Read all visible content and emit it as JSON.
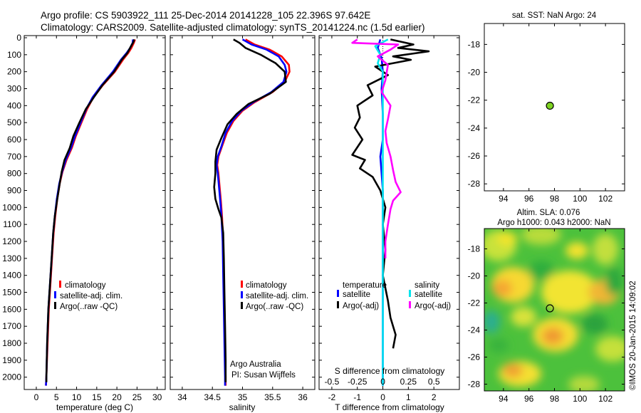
{
  "header": {
    "line1": "Argo profile: CS 5903922_111 25-Dec-2014 20141228_105 22.396S 97.642E",
    "line2": "Climatology: CARS2009. Satellite-adjusted climatology: synTS_20141224.nc (1.5d earlier)"
  },
  "colors": {
    "climatology": "#ff0000",
    "satellite": "#0000ff",
    "argo": "#000000",
    "sal_satellite": "#00e5ee",
    "sal_argo": "#ff00ff",
    "marker": "#7ed321"
  },
  "chart_data": [
    {
      "id": "temperature",
      "type": "line",
      "xlabel": "temperature (deg C)",
      "ylabel": "",
      "xlim": [
        -3,
        32
      ],
      "ylim": [
        2060,
        0
      ],
      "y_inverted": true,
      "yticks": [
        0,
        100,
        200,
        300,
        400,
        500,
        600,
        700,
        800,
        900,
        1000,
        1100,
        1200,
        1300,
        1400,
        1500,
        1600,
        1700,
        1800,
        1900,
        2000
      ],
      "xticks": [
        0,
        5,
        10,
        15,
        20,
        25,
        30
      ],
      "legend": [
        "climatology",
        "satellite-adj. clim.",
        "Argo(..raw -QC)"
      ],
      "series": [
        {
          "name": "climatology",
          "color": "#ff0000",
          "points": [
            [
              24.5,
              10
            ],
            [
              24.2,
              30
            ],
            [
              23.6,
              60
            ],
            [
              22.8,
              90
            ],
            [
              21.5,
              130
            ],
            [
              19.5,
              200
            ],
            [
              16.5,
              280
            ],
            [
              14.2,
              350
            ],
            [
              12.6,
              420
            ],
            [
              11.2,
              500
            ],
            [
              9.8,
              580
            ],
            [
              8.8,
              650
            ],
            [
              7.5,
              720
            ],
            [
              6.5,
              790
            ],
            [
              5.8,
              860
            ],
            [
              5.2,
              950
            ],
            [
              4.7,
              1050
            ],
            [
              4.3,
              1150
            ],
            [
              3.9,
              1300
            ],
            [
              3.5,
              1450
            ],
            [
              3.1,
              1600
            ],
            [
              2.8,
              1800
            ],
            [
              2.5,
              2000
            ],
            [
              2.4,
              2050
            ]
          ]
        },
        {
          "name": "satellite-adj. clim.",
          "color": "#0000ff",
          "points": [
            [
              24.0,
              10
            ],
            [
              23.9,
              30
            ],
            [
              23.3,
              60
            ],
            [
              22.4,
              90
            ],
            [
              21.0,
              130
            ],
            [
              19.0,
              200
            ],
            [
              16.2,
              280
            ],
            [
              14.0,
              350
            ],
            [
              12.4,
              420
            ],
            [
              11.0,
              500
            ],
            [
              9.6,
              580
            ],
            [
              8.6,
              650
            ],
            [
              7.3,
              720
            ],
            [
              6.4,
              790
            ],
            [
              5.7,
              860
            ],
            [
              5.1,
              950
            ],
            [
              4.6,
              1050
            ],
            [
              4.2,
              1150
            ],
            [
              3.8,
              1300
            ],
            [
              3.4,
              1450
            ],
            [
              3.0,
              1600
            ],
            [
              2.7,
              1800
            ],
            [
              2.5,
              2000
            ],
            [
              2.4,
              2050
            ]
          ]
        },
        {
          "name": "Argo(..raw -QC)",
          "color": "#000000",
          "points": [
            [
              24.3,
              10
            ],
            [
              24.1,
              25
            ],
            [
              23.5,
              50
            ],
            [
              22.6,
              90
            ],
            [
              21.2,
              130
            ],
            [
              19.3,
              200
            ],
            [
              16.4,
              280
            ],
            [
              14.3,
              350
            ],
            [
              12.3,
              420
            ],
            [
              10.7,
              500
            ],
            [
              9.2,
              580
            ],
            [
              8.3,
              650
            ],
            [
              7.0,
              720
            ],
            [
              6.3,
              790
            ],
            [
              5.8,
              860
            ],
            [
              5.2,
              950
            ],
            [
              4.6,
              1050
            ],
            [
              4.2,
              1150
            ],
            [
              3.8,
              1300
            ],
            [
              3.4,
              1450
            ],
            [
              3.0,
              1600
            ],
            [
              2.7,
              1800
            ],
            [
              2.5,
              2000
            ],
            [
              2.5,
              2030
            ]
          ]
        }
      ]
    },
    {
      "id": "salinity",
      "type": "line",
      "xlabel": "salinity",
      "xlim": [
        33.8,
        36.2
      ],
      "ylim": [
        2060,
        0
      ],
      "xticks": [
        34,
        34.5,
        35,
        35.5,
        36
      ],
      "legend": [
        "climatology",
        "satellite-adj. clim.",
        "Argo(..raw -QC)"
      ],
      "annotation": [
        "Argo Australia",
        "PI: Susan Wijffels"
      ],
      "series": [
        {
          "name": "climatology",
          "color": "#ff0000",
          "points": [
            [
              35.05,
              10
            ],
            [
              35.2,
              40
            ],
            [
              35.45,
              70
            ],
            [
              35.65,
              110
            ],
            [
              35.77,
              160
            ],
            [
              35.78,
              200
            ],
            [
              35.7,
              260
            ],
            [
              35.5,
              320
            ],
            [
              35.2,
              380
            ],
            [
              35.0,
              430
            ],
            [
              34.85,
              490
            ],
            [
              34.74,
              560
            ],
            [
              34.66,
              640
            ],
            [
              34.6,
              700
            ],
            [
              34.58,
              750
            ],
            [
              34.6,
              800
            ],
            [
              34.62,
              880
            ],
            [
              34.64,
              960
            ],
            [
              34.66,
              1050
            ],
            [
              34.68,
              1200
            ],
            [
              34.69,
              1400
            ],
            [
              34.7,
              1600
            ],
            [
              34.71,
              1800
            ],
            [
              34.72,
              2000
            ],
            [
              34.72,
              2050
            ]
          ]
        },
        {
          "name": "satellite-adj. clim.",
          "color": "#0000ff",
          "points": [
            [
              35.0,
              10
            ],
            [
              35.15,
              40
            ],
            [
              35.4,
              70
            ],
            [
              35.6,
              110
            ],
            [
              35.7,
              160
            ],
            [
              35.73,
              200
            ],
            [
              35.68,
              260
            ],
            [
              35.48,
              320
            ],
            [
              35.18,
              380
            ],
            [
              34.98,
              430
            ],
            [
              34.83,
              490
            ],
            [
              34.72,
              560
            ],
            [
              34.65,
              640
            ],
            [
              34.59,
              700
            ],
            [
              34.57,
              750
            ],
            [
              34.59,
              800
            ],
            [
              34.61,
              880
            ],
            [
              34.63,
              960
            ],
            [
              34.65,
              1050
            ],
            [
              34.67,
              1200
            ],
            [
              34.68,
              1400
            ],
            [
              34.69,
              1600
            ],
            [
              34.7,
              1800
            ],
            [
              34.71,
              2000
            ],
            [
              34.71,
              2050
            ]
          ]
        },
        {
          "name": "Argo(..raw -QC)",
          "color": "#000000",
          "points": [
            [
              34.85,
              10
            ],
            [
              34.95,
              30
            ],
            [
              35.05,
              60
            ],
            [
              35.3,
              100
            ],
            [
              35.55,
              150
            ],
            [
              35.7,
              200
            ],
            [
              35.72,
              260
            ],
            [
              35.45,
              330
            ],
            [
              35.1,
              390
            ],
            [
              34.9,
              450
            ],
            [
              34.75,
              510
            ],
            [
              34.65,
              590
            ],
            [
              34.57,
              660
            ],
            [
              34.55,
              730
            ],
            [
              34.55,
              800
            ],
            [
              34.53,
              880
            ],
            [
              34.55,
              950
            ],
            [
              34.6,
              1010
            ],
            [
              34.65,
              1060
            ],
            [
              34.68,
              1150
            ],
            [
              34.69,
              1300
            ],
            [
              34.7,
              1500
            ],
            [
              34.71,
              1700
            ],
            [
              34.72,
              1900
            ],
            [
              34.72,
              2030
            ]
          ]
        }
      ]
    },
    {
      "id": "difference",
      "type": "line",
      "xlabel": "T difference from climatology",
      "top_xlabel": "S difference from climatology",
      "xlim": [
        -2.5,
        3.0
      ],
      "ylim": [
        2060,
        0
      ],
      "xticks": [
        -2,
        -1,
        0,
        1,
        2
      ],
      "top_xticks": [
        "-0.5",
        "-0.25",
        "0",
        "0.25",
        "0.5"
      ],
      "top_xtick_values": [
        -2,
        -1,
        0,
        1,
        2
      ],
      "legend_titles": [
        "temperature",
        "salinity"
      ],
      "legend": [
        "satellite",
        "Argo(-adj)",
        "satellite",
        "Argo(-adj)"
      ],
      "series": [
        {
          "name": "T satellite",
          "color": "#0000ff",
          "points": [
            [
              -0.1,
              10
            ],
            [
              -0.2,
              60
            ],
            [
              -0.05,
              120
            ],
            [
              0.0,
              200
            ],
            [
              -0.05,
              300
            ],
            [
              0.0,
              450
            ],
            [
              0.0,
              600
            ],
            [
              -0.1,
              700
            ],
            [
              -0.05,
              800
            ],
            [
              0.0,
              900
            ],
            [
              0.0,
              1100
            ],
            [
              0.0,
              1400
            ],
            [
              0.0,
              1700
            ],
            [
              0.0,
              2050
            ]
          ]
        },
        {
          "name": "T Argo(-adj)",
          "color": "#000000",
          "points": [
            [
              0.3,
              10
            ],
            [
              1.2,
              40
            ],
            [
              0.6,
              60
            ],
            [
              1.8,
              80
            ],
            [
              0.4,
              110
            ],
            [
              1.1,
              130
            ],
            [
              -0.3,
              170
            ],
            [
              0.2,
              220
            ],
            [
              -0.6,
              280
            ],
            [
              -0.4,
              340
            ],
            [
              -1.0,
              400
            ],
            [
              -0.9,
              470
            ],
            [
              -1.1,
              530
            ],
            [
              -0.8,
              600
            ],
            [
              -1.2,
              690
            ],
            [
              -0.7,
              720
            ],
            [
              -0.9,
              770
            ],
            [
              -0.4,
              820
            ],
            [
              -0.1,
              900
            ],
            [
              0.1,
              1000
            ],
            [
              0.0,
              1100
            ],
            [
              0.1,
              1250
            ],
            [
              0.0,
              1400
            ],
            [
              0.2,
              1550
            ],
            [
              0.3,
              1650
            ],
            [
              0.5,
              1750
            ],
            [
              0.4,
              1830
            ]
          ]
        },
        {
          "name": "S satellite",
          "color": "#00e5ee",
          "points": [
            [
              0.2,
              10
            ],
            [
              -0.3,
              50
            ],
            [
              -0.1,
              100
            ],
            [
              -0.2,
              150
            ],
            [
              0.0,
              200
            ],
            [
              0.0,
              400
            ],
            [
              0.0,
              600
            ],
            [
              0.0,
              800
            ],
            [
              0.0,
              1000
            ],
            [
              0.0,
              1300
            ],
            [
              0.0,
              1600
            ],
            [
              0.0,
              2050
            ]
          ]
        },
        {
          "name": "S Argo(-adj)",
          "color": "#ff00ff",
          "points": [
            [
              -1.0,
              10
            ],
            [
              -1.2,
              30
            ],
            [
              0.6,
              40
            ],
            [
              0.3,
              70
            ],
            [
              -0.2,
              110
            ],
            [
              0.2,
              160
            ],
            [
              0.1,
              250
            ],
            [
              -0.05,
              320
            ],
            [
              0.3,
              400
            ],
            [
              0.2,
              480
            ],
            [
              0.1,
              550
            ],
            [
              0.15,
              620
            ],
            [
              0.3,
              700
            ],
            [
              0.4,
              780
            ],
            [
              0.5,
              850
            ],
            [
              0.7,
              910
            ],
            [
              0.4,
              960
            ],
            [
              0.3,
              1010
            ],
            [
              0.2,
              1100
            ],
            [
              0.1,
              1200
            ],
            [
              0.1,
              1300
            ]
          ]
        }
      ]
    },
    {
      "id": "sst-map",
      "type": "scatter",
      "title": "sat. SST: NaN Argo: 24",
      "xlim": [
        92.5,
        103.5
      ],
      "ylim": [
        -28.5,
        -16.5
      ],
      "xticks": [
        94,
        96,
        98,
        100,
        102
      ],
      "yticks": [
        -18,
        -20,
        -22,
        -24,
        -26,
        -28
      ],
      "points": [
        {
          "x": 97.642,
          "y": -22.396
        }
      ]
    },
    {
      "id": "sla-map",
      "type": "heatmap",
      "title_lines": [
        "Altim. SLA: 0.076",
        "Argo h1000: 0.043 h2000: NaN"
      ],
      "xlim": [
        92.5,
        103.5
      ],
      "ylim": [
        -28.5,
        -16.5
      ],
      "xticks": [
        94,
        96,
        98,
        100,
        102
      ],
      "yticks": [
        -18,
        -20,
        -22,
        -24,
        -26,
        -28
      ],
      "points": [
        {
          "x": 97.642,
          "y": -22.396
        }
      ]
    }
  ],
  "footer": {
    "credit": "©IMOS 20-Jan-2015 14:09:02"
  }
}
